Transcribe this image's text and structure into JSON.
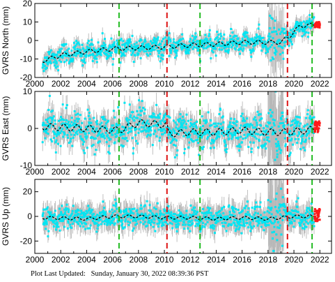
{
  "colors": {
    "error_bars": "#b8b8b8",
    "data_points": "#00e5f2",
    "model_curve": "#000000",
    "recent_points": "#ff1a1a",
    "antenna_change_line": "#22bb22",
    "equipment_change_line": "#dd1111"
  },
  "footer": {
    "label": "Plot Last Updated:",
    "timestamp": "Sunday, January 30, 2022 08:39:36 PST"
  },
  "chart_data": [
    {
      "type": "scatter",
      "ylabel": "GVRS North (mm)",
      "xlim": [
        2000,
        2022.9
      ],
      "ylim": [
        -20,
        20
      ],
      "xticks": [
        2000,
        2002,
        2004,
        2006,
        2008,
        2010,
        2012,
        2014,
        2016,
        2018,
        2020,
        2022
      ],
      "yticks": [
        -20,
        -10,
        0,
        10,
        20
      ],
      "show_x_tick_labels": true,
      "grid": false,
      "series": [
        {
          "role": "model",
          "x": [
            2000.6,
            2002,
            2004,
            2006,
            2008,
            2010,
            2012,
            2014,
            2016,
            2018,
            2019,
            2019.6,
            2020.5,
            2022
          ],
          "y": [
            -11,
            -8,
            -6,
            -4.5,
            -4,
            -3.5,
            -2.5,
            -2,
            -1,
            -1,
            -1,
            2,
            8,
            8.5
          ],
          "seasonal_amplitude": 1.8,
          "scatter": 2.5,
          "error_bar": 3.5
        }
      ],
      "recent_points": {
        "x": [
          2021.6,
          2022.0
        ],
        "y": [
          7,
          10
        ]
      },
      "noisy_period": {
        "x": [
          2018.0,
          2019.2
        ],
        "extra_scatter": 6
      },
      "vlines_green": [
        2006.5,
        2012.75,
        2021.4
      ],
      "vlines_red": [
        2010.2,
        2019.5
      ]
    },
    {
      "type": "scatter",
      "ylabel": "GVRS East (mm)",
      "xlim": [
        2000,
        2022.9
      ],
      "ylim": [
        -10,
        10
      ],
      "xticks": [
        2000,
        2002,
        2004,
        2006,
        2008,
        2010,
        2012,
        2014,
        2016,
        2018,
        2020,
        2022
      ],
      "yticks": [
        -10,
        0,
        10
      ],
      "show_x_tick_labels": true,
      "grid": false,
      "series": [
        {
          "role": "model",
          "x": [
            2000.6,
            2004,
            2006.5,
            2008,
            2010.2,
            2010.3,
            2012,
            2014,
            2016,
            2018,
            2019.5,
            2021,
            2022
          ],
          "y": [
            0.5,
            0,
            -0.5,
            1.5,
            1,
            -1.5,
            -1,
            -1,
            -0.5,
            -1,
            -1,
            -0.5,
            0
          ],
          "seasonal_amplitude": 1.5,
          "scatter": 2.2,
          "error_bar": 2.8
        }
      ],
      "recent_points": {
        "x": [
          2021.6,
          2022.0
        ],
        "y": [
          -1,
          2
        ]
      },
      "noisy_period": {
        "x": [
          2018.0,
          2019.2
        ],
        "extra_scatter": 5
      },
      "vlines_green": [
        2006.5,
        2012.75,
        2021.4
      ],
      "vlines_red": [
        2010.2,
        2019.5
      ]
    },
    {
      "type": "scatter",
      "ylabel": "GVRS Up (mm)",
      "xlim": [
        2000,
        2022.9
      ],
      "ylim": [
        -30,
        30
      ],
      "xticks": [
        2000,
        2002,
        2004,
        2006,
        2008,
        2010,
        2012,
        2014,
        2016,
        2018,
        2020,
        2022
      ],
      "yticks": [
        -20,
        0,
        20
      ],
      "show_x_tick_labels": true,
      "grid": false,
      "series": [
        {
          "role": "model",
          "x": [
            2000.6,
            2004,
            2006,
            2008,
            2010,
            2012,
            2014,
            2016,
            2018,
            2020,
            2022
          ],
          "y": [
            -1,
            -2,
            0,
            0,
            -1,
            -1,
            -2,
            -1,
            -2,
            0,
            0
          ],
          "seasonal_amplitude": 2,
          "scatter": 4.5,
          "error_bar": 8
        }
      ],
      "recent_points": {
        "x": [
          2021.6,
          2022.0
        ],
        "y": [
          -4,
          6
        ]
      },
      "noisy_period": {
        "x": [
          2018.0,
          2019.2
        ],
        "extra_scatter": 15
      },
      "vlines_green": [
        2006.5,
        2012.75,
        2021.4
      ],
      "vlines_red": [
        2010.2,
        2019.5
      ]
    }
  ]
}
